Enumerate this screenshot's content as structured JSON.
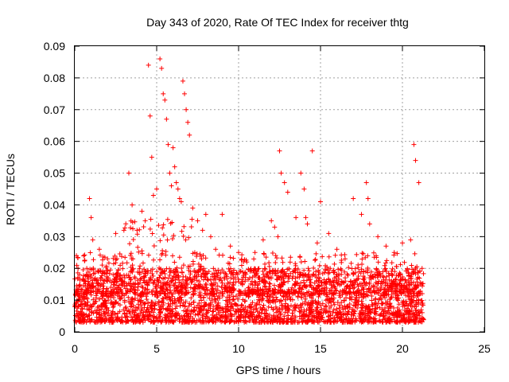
{
  "chart_data": {
    "type": "scatter",
    "title": "Day 343 of 2020, Rate Of TEC Index for receiver thtg",
    "xlabel": "GPS time / hours",
    "ylabel": "ROTI / TECUs",
    "xlim": [
      0,
      25
    ],
    "ylim": [
      0,
      0.09
    ],
    "x_ticks": [
      0,
      5,
      10,
      15,
      20,
      25
    ],
    "x_tick_labels": [
      "0",
      "5",
      "10",
      "15",
      "20",
      "25"
    ],
    "y_ticks": [
      0,
      0.01,
      0.02,
      0.03,
      0.04,
      0.05,
      0.06,
      0.07,
      0.08,
      0.09
    ],
    "y_tick_labels": [
      "0",
      "0.01",
      "0.02",
      "0.03",
      "0.04",
      "0.05",
      "0.06",
      "0.07",
      "0.08",
      "0.09"
    ],
    "grid": true,
    "legend": "none",
    "marker": "plus",
    "color": "#ff0000",
    "series": [
      {
        "x": [
          0.1,
          0.2,
          0.3,
          0.9,
          1.0,
          1.1,
          1.5,
          2.0,
          2.5,
          3.0,
          3.3,
          3.5,
          3.8,
          4.1,
          4.3,
          4.5,
          4.6,
          4.7,
          4.8,
          5.0,
          5.2,
          5.3,
          5.4,
          5.5,
          5.6,
          5.7,
          5.8,
          5.9,
          6.0,
          6.1,
          6.2,
          6.3,
          6.4,
          6.5,
          6.6,
          6.7,
          6.8,
          6.9,
          7.0,
          7.2,
          7.5,
          7.8,
          8.0,
          8.3,
          8.6,
          9.0,
          9.5,
          10.0,
          10.5,
          11.0,
          11.5,
          12.0,
          12.2,
          12.4,
          12.5,
          12.6,
          12.8,
          13.0,
          13.5,
          13.8,
          14.0,
          14.1,
          14.2,
          14.5,
          14.8,
          15.0,
          15.5,
          16.0,
          16.5,
          17.0,
          17.5,
          17.8,
          17.9,
          18.0,
          18.5,
          19.0,
          19.5,
          20.0,
          20.5,
          20.7,
          20.8,
          21.0,
          21.2
        ],
        "y": [
          0.024,
          0.02,
          0.018,
          0.042,
          0.036,
          0.029,
          0.026,
          0.023,
          0.031,
          0.032,
          0.05,
          0.04,
          0.032,
          0.038,
          0.035,
          0.084,
          0.068,
          0.055,
          0.043,
          0.045,
          0.086,
          0.083,
          0.075,
          0.073,
          0.067,
          0.059,
          0.05,
          0.046,
          0.058,
          0.052,
          0.047,
          0.045,
          0.042,
          0.041,
          0.079,
          0.075,
          0.07,
          0.066,
          0.062,
          0.039,
          0.035,
          0.032,
          0.037,
          0.03,
          0.026,
          0.037,
          0.027,
          0.025,
          0.022,
          0.025,
          0.029,
          0.035,
          0.033,
          0.03,
          0.057,
          0.05,
          0.047,
          0.044,
          0.036,
          0.05,
          0.045,
          0.036,
          0.034,
          0.057,
          0.028,
          0.041,
          0.031,
          0.026,
          0.023,
          0.042,
          0.037,
          0.047,
          0.042,
          0.034,
          0.03,
          0.027,
          0.025,
          0.028,
          0.029,
          0.059,
          0.054,
          0.047,
          0.02
        ]
      }
    ],
    "dense_band": {
      "x_range": [
        0,
        21.3
      ],
      "y_range": [
        0.003,
        0.02
      ]
    }
  }
}
